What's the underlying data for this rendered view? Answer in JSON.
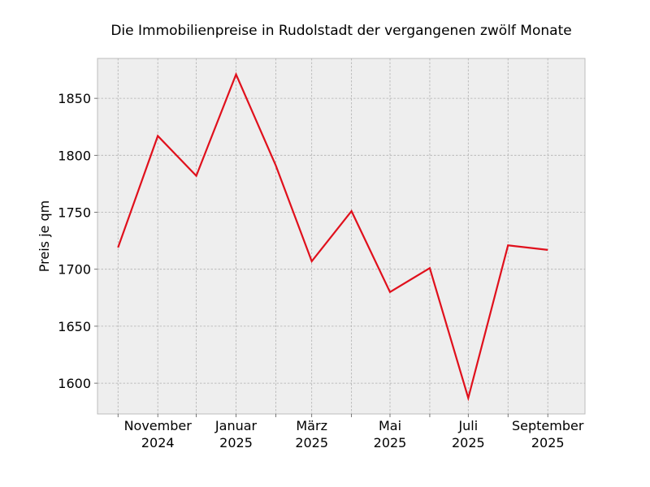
{
  "chart_data": {
    "type": "line",
    "title": "Die Immobilienpreise in Rudolstadt der vergangenen zwölf Monate",
    "xlabel": "",
    "ylabel": "Preis je qm",
    "x": [
      "2024-10",
      "2024-11",
      "2024-12",
      "2025-01",
      "2025-02",
      "2025-03",
      "2025-04",
      "2025-05",
      "2025-06",
      "2025-07",
      "2025-08",
      "2025-09"
    ],
    "series": [
      {
        "values": [
          1719,
          1817,
          1782,
          1871,
          1791,
          1707,
          1751,
          1680,
          1701,
          1587,
          1721,
          1717
        ],
        "color": "#e0101c"
      }
    ],
    "x_tick_labels": [
      {
        "month": "2024-11",
        "line1": "November",
        "line2": "2024"
      },
      {
        "month": "2025-01",
        "line1": "Januar",
        "line2": "2025"
      },
      {
        "month": "2025-03",
        "line1": "März",
        "line2": "2025"
      },
      {
        "month": "2025-05",
        "line1": "Mai",
        "line2": "2025"
      },
      {
        "month": "2025-07",
        "line1": "Juli",
        "line2": "2025"
      },
      {
        "month": "2025-09",
        "line1": "September",
        "line2": "2025"
      }
    ],
    "y_ticks": [
      1600,
      1650,
      1700,
      1750,
      1800,
      1850
    ],
    "ylim": [
      1573,
      1885
    ],
    "xlim": [
      "2024-09-15",
      "2025-09-30"
    ],
    "grid": true,
    "background_color": "#eeeeee",
    "grid_color": "#b0b0b0"
  }
}
